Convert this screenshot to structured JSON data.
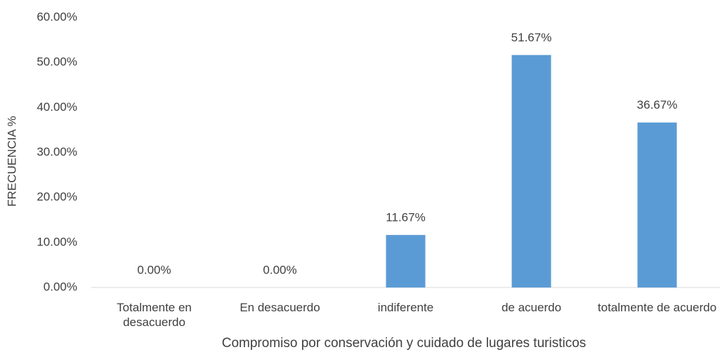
{
  "chart_data": {
    "type": "bar",
    "categories": [
      "Totalmente en desacuerdo",
      "En desacuerdo",
      "indiferente",
      "de acuerdo",
      "totalmente de acuerdo"
    ],
    "values": [
      0,
      0,
      11.67,
      51.67,
      36.67
    ],
    "value_labels": [
      "0.00%",
      "0.00%",
      "11.67%",
      "51.67%",
      "36.67%"
    ],
    "color": "#5b9bd5",
    "ylabel": "FRECUENCIA %",
    "xlabel": "Compromiso por conservación y cuidado de lugares turisticos",
    "ylim": [
      0,
      60
    ],
    "yticks": [
      {
        "value": 0,
        "label": "0.00%"
      },
      {
        "value": 10,
        "label": "10.00%"
      },
      {
        "value": 20,
        "label": "20.00%"
      },
      {
        "value": 30,
        "label": "30.00%"
      },
      {
        "value": 40,
        "label": "40.00%"
      },
      {
        "value": 50,
        "label": "50.00%"
      },
      {
        "value": 60,
        "label": "60.00%"
      }
    ],
    "grid": false
  }
}
